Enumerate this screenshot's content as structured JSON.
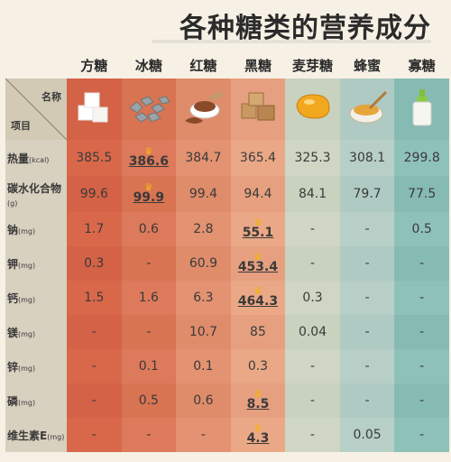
{
  "title": "各种糖类的营养成分",
  "header": {
    "name_label": "名称",
    "item_label": "项目"
  },
  "columns": [
    {
      "name": "方糖",
      "icon": "sugar-cube-icon"
    },
    {
      "name": "冰糖",
      "icon": "rock-sugar-icon"
    },
    {
      "name": "红糖",
      "icon": "brown-sugar-icon"
    },
    {
      "name": "黑糖",
      "icon": "black-sugar-icon"
    },
    {
      "name": "麦芽糖",
      "icon": "maltose-icon"
    },
    {
      "name": "蜂蜜",
      "icon": "honey-jar-icon"
    },
    {
      "name": "寡糖",
      "icon": "oligosaccharide-bottle-icon"
    }
  ],
  "rows": [
    {
      "label": "热量",
      "unit": "(kcal)",
      "values": [
        "385.5",
        "386.6",
        "384.7",
        "365.4",
        "325.3",
        "308.1",
        "299.8"
      ],
      "max_index": 1
    },
    {
      "label": "碳水化合物",
      "unit": "(g)",
      "values": [
        "99.6",
        "99.9",
        "99.4",
        "94.4",
        "84.1",
        "79.7",
        "77.5"
      ],
      "max_index": 1
    },
    {
      "label": "钠",
      "unit": "(mg)",
      "values": [
        "1.7",
        "0.6",
        "2.8",
        "55.1",
        "-",
        "-",
        "0.5"
      ],
      "max_index": 3
    },
    {
      "label": "钾",
      "unit": "(mg)",
      "values": [
        "0.3",
        "-",
        "60.9",
        "453.4",
        "-",
        "-",
        "-"
      ],
      "max_index": 3
    },
    {
      "label": "钙",
      "unit": "(mg)",
      "values": [
        "1.5",
        "1.6",
        "6.3",
        "464.3",
        "0.3",
        "-",
        "-"
      ],
      "max_index": 3
    },
    {
      "label": "镁",
      "unit": "(mg)",
      "values": [
        "-",
        "-",
        "10.7",
        "85",
        "0.04",
        "-",
        "-"
      ],
      "max_index": -1
    },
    {
      "label": "锌",
      "unit": "(mg)",
      "values": [
        "-",
        "0.1",
        "0.1",
        "0.3",
        "-",
        "-",
        "-"
      ],
      "max_index": -1
    },
    {
      "label": "磷",
      "unit": "(mg)",
      "values": [
        "-",
        "0.5",
        "0.6",
        "8.5",
        "-",
        "-",
        "-"
      ],
      "max_index": 3
    },
    {
      "label": "维生素E",
      "unit": "(mg)",
      "values": [
        "-",
        "-",
        "-",
        "4.3",
        "-",
        "0.05",
        "-"
      ],
      "max_index": 3
    }
  ],
  "colors": {
    "crown": "#f3b21a"
  }
}
